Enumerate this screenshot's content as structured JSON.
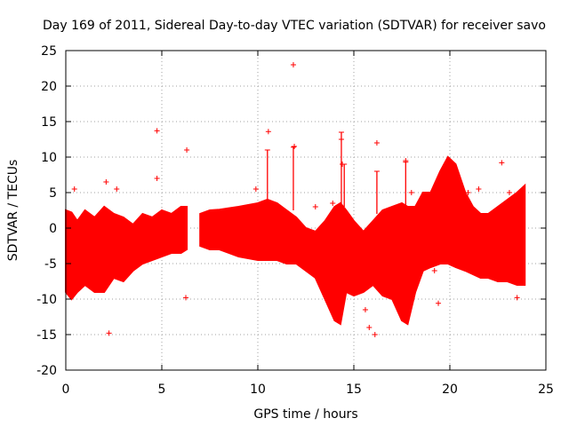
{
  "chart_data": {
    "type": "scatter",
    "title": "Day 169 of 2011, Sidereal Day-to-day VTEC variation (SDTVAR) for receiver savo",
    "xlabel": "GPS time / hours",
    "ylabel": "SDTVAR / TECUs",
    "xlim": [
      0,
      25
    ],
    "ylim": [
      -20,
      25
    ],
    "xticks": [
      0,
      5,
      10,
      15,
      20,
      25
    ],
    "yticks": [
      -20,
      -15,
      -10,
      -5,
      0,
      5,
      10,
      15,
      20,
      25
    ],
    "grid": true,
    "marker": "+",
    "color": "#ff0000",
    "envelope": {
      "description": "dense band of points: upper and lower bound of SDTVAR vs GPS time",
      "x": [
        0.0,
        0.3,
        0.6,
        1.0,
        1.5,
        2.0,
        2.5,
        3.0,
        3.5,
        4.0,
        4.5,
        5.0,
        5.5,
        6.0,
        6.3,
        7.0,
        7.5,
        8.0,
        9.0,
        10.0,
        10.5,
        11.0,
        11.5,
        12.0,
        12.5,
        13.0,
        13.5,
        14.0,
        14.3,
        14.6,
        15.0,
        15.5,
        16.0,
        16.5,
        17.0,
        17.5,
        17.8,
        18.2,
        18.6,
        19.0,
        19.5,
        19.9,
        20.3,
        20.8,
        21.2,
        21.6,
        22.0,
        22.5,
        23.0,
        23.5,
        23.9
      ],
      "upper": [
        2.5,
        2.2,
        1.0,
        2.5,
        1.5,
        3.0,
        2.0,
        1.5,
        0.5,
        2.0,
        1.5,
        2.5,
        2.0,
        3.0,
        3.0,
        2.0,
        2.5,
        2.6,
        3.0,
        3.5,
        4.0,
        3.5,
        2.5,
        1.5,
        0.0,
        -0.5,
        1.0,
        3.0,
        3.5,
        2.5,
        1.0,
        -0.5,
        1.0,
        2.5,
        3.0,
        3.5,
        3.0,
        3.0,
        5.0,
        5.0,
        8.0,
        10.0,
        9.0,
        5.0,
        3.0,
        2.0,
        2.0,
        3.0,
        4.0,
        5.0,
        6.0
      ],
      "lower": [
        -9.0,
        -10.0,
        -9.0,
        -8.0,
        -9.0,
        -9.0,
        -7.0,
        -7.5,
        -6.0,
        -5.0,
        -4.5,
        -4.0,
        -3.5,
        -3.5,
        -3.0,
        -2.5,
        -3.0,
        -3.0,
        -4.0,
        -4.5,
        -4.5,
        -4.5,
        -5.0,
        -5.0,
        -6.0,
        -7.0,
        -10.0,
        -13.0,
        -13.5,
        -9.0,
        -9.5,
        -9.0,
        -8.0,
        -9.5,
        -10.0,
        -13.0,
        -13.5,
        -9.0,
        -6.0,
        -5.5,
        -5.0,
        -5.0,
        -5.5,
        -6.0,
        -6.5,
        -7.0,
        -7.0,
        -7.5,
        -7.5,
        -8.0,
        -8.0
      ]
    },
    "data_gaps": [
      [
        6.35,
        6.95
      ]
    ],
    "outliers": {
      "x": [
        0.45,
        2.1,
        2.25,
        2.65,
        4.75,
        4.75,
        6.3,
        6.25,
        11.85,
        10.55,
        11.9,
        14.35,
        14.4,
        16.2,
        16.1,
        15.6,
        15.8,
        17.7,
        19.2,
        19.4,
        20.95,
        21.5,
        22.7,
        23.1,
        23.5,
        13.0,
        13.9,
        18.0,
        9.9
      ],
      "y": [
        5.5,
        6.5,
        -14.8,
        5.5,
        13.7,
        7.0,
        11.0,
        -9.8,
        23.0,
        13.6,
        11.5,
        12.5,
        9.0,
        12.0,
        -15.0,
        -11.5,
        -14.0,
        9.5,
        -6.0,
        -10.6,
        5.0,
        5.5,
        9.2,
        5.0,
        -9.8,
        3.0,
        3.5,
        5.0,
        5.5
      ]
    },
    "spikes": [
      {
        "x": 10.5,
        "from": 3.5,
        "to": 11.0
      },
      {
        "x": 11.85,
        "from": 2.5,
        "to": 11.4
      },
      {
        "x": 14.35,
        "from": 3.0,
        "to": 13.5
      },
      {
        "x": 14.5,
        "from": 3.0,
        "to": 9.0
      },
      {
        "x": 16.2,
        "from": 2.0,
        "to": 8.0
      },
      {
        "x": 17.7,
        "from": 3.0,
        "to": 9.3
      }
    ]
  }
}
